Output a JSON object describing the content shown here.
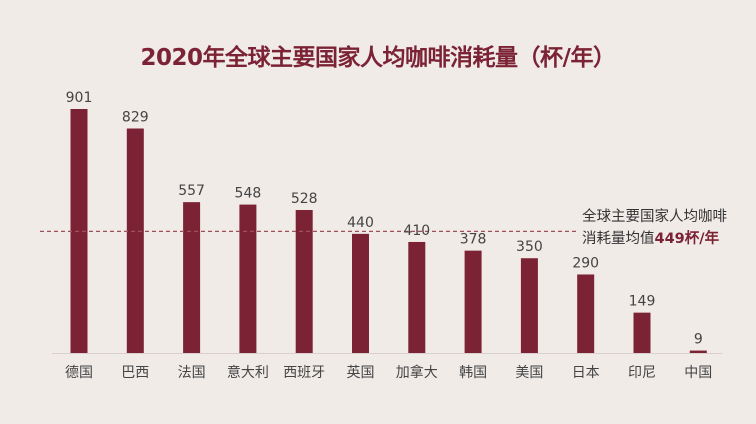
{
  "colors": {
    "bar": "#7b2335",
    "avg_line": "#a0505a",
    "background": "#f1ebe8"
  },
  "chart_data": {
    "type": "bar",
    "title": "2020年全球主要国家人均咖啡消耗量（杯/年）",
    "categories": [
      "德国",
      "巴西",
      "法国",
      "意大利",
      "西班牙",
      "英国",
      "加拿大",
      "韩国",
      "美国",
      "日本",
      "印尼",
      "中国"
    ],
    "values": [
      901,
      829,
      557,
      548,
      528,
      440,
      410,
      378,
      350,
      290,
      149,
      9
    ],
    "average": 449,
    "annotation": {
      "line1": "全球主要国家人均咖啡",
      "line2_prefix": "消耗量均值",
      "line2_value": "449杯/年"
    },
    "ylim": [
      0,
      901
    ]
  }
}
